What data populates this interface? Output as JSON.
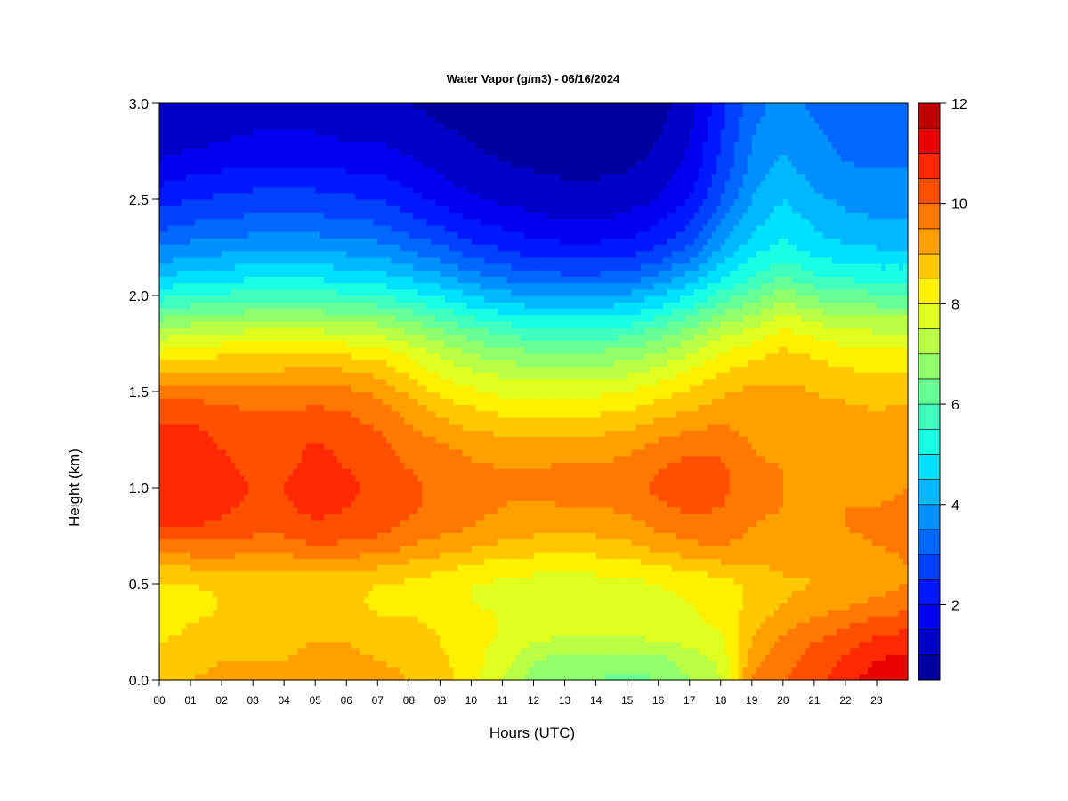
{
  "chart_data": {
    "type": "heatmap",
    "title": "Water Vapor (g/m3) - 06/16/2024",
    "xlabel": "Hours (UTC)",
    "ylabel": "Height (km)",
    "x_ticks": [
      "00",
      "01",
      "02",
      "03",
      "04",
      "05",
      "06",
      "07",
      "08",
      "09",
      "10",
      "11",
      "12",
      "13",
      "14",
      "15",
      "16",
      "17",
      "18",
      "19",
      "20",
      "21",
      "22",
      "23"
    ],
    "x_range": [
      0,
      24
    ],
    "y_ticks": [
      "0.0",
      "0.5",
      "1.0",
      "1.5",
      "2.0",
      "2.5",
      "3.0"
    ],
    "y_range": [
      0,
      3
    ],
    "colorbar": {
      "range": [
        0.5,
        12
      ],
      "ticks": [
        "2",
        "4",
        "6",
        "8",
        "10",
        "12"
      ],
      "levels": [
        0.5,
        1.0,
        1.5,
        2.0,
        2.5,
        3.0,
        3.5,
        4.0,
        4.5,
        5.0,
        5.5,
        6.0,
        6.5,
        7.0,
        7.5,
        8.0,
        8.5,
        9.0,
        9.5,
        10.0,
        10.5,
        11.0,
        11.5,
        12.0
      ],
      "colors": [
        "#00007f",
        "#0000a0",
        "#0000c8",
        "#0000f0",
        "#0018ff",
        "#0040ff",
        "#0068ff",
        "#0090ff",
        "#00b8ff",
        "#00e0ff",
        "#18ffe6",
        "#40ffbe",
        "#68ff96",
        "#90ff6e",
        "#b8ff46",
        "#e0ff1e",
        "#fff000",
        "#ffc800",
        "#ffa000",
        "#ff7800",
        "#ff5000",
        "#ff2800",
        "#e60000",
        "#be0000",
        "#960000"
      ]
    },
    "hours": [
      0,
      1,
      2,
      3,
      4,
      5,
      6,
      7,
      8,
      9,
      10,
      11,
      12,
      13,
      14,
      15,
      16,
      17,
      18,
      19,
      20,
      21,
      22,
      23,
      24
    ],
    "heights_km": [
      0.0,
      0.1,
      0.2,
      0.3,
      0.4,
      0.5,
      0.6,
      0.7,
      0.8,
      0.9,
      1.0,
      1.1,
      1.2,
      1.3,
      1.4,
      1.5,
      1.6,
      1.7,
      1.8,
      1.9,
      2.0,
      2.1,
      2.2,
      2.3,
      2.4,
      2.5,
      2.6,
      2.7,
      2.8,
      2.9,
      3.0
    ],
    "values_by_height": [
      [
        8.8,
        9.0,
        9.2,
        9.2,
        9.2,
        9.5,
        9.3,
        9.2,
        9.0,
        8.7,
        8.3,
        7.4,
        6.8,
        6.5,
        6.5,
        6.3,
        6.5,
        7.0,
        7.5,
        9.5,
        10.0,
        10.3,
        10.8,
        11.3,
        11.5
      ],
      [
        8.6,
        8.8,
        9.0,
        9.0,
        9.0,
        9.3,
        9.2,
        9.0,
        8.9,
        8.6,
        8.2,
        7.7,
        7.0,
        6.8,
        6.8,
        6.7,
        6.8,
        7.2,
        7.6,
        9.3,
        9.8,
        10.2,
        10.6,
        11.0,
        11.2
      ],
      [
        8.5,
        8.6,
        8.8,
        8.8,
        8.8,
        9.0,
        9.0,
        8.8,
        8.8,
        8.5,
        8.2,
        7.9,
        7.5,
        7.4,
        7.4,
        7.3,
        7.5,
        7.6,
        7.8,
        9.0,
        9.6,
        10.0,
        10.3,
        10.6,
        10.8
      ],
      [
        8.3,
        8.5,
        8.6,
        8.7,
        8.6,
        8.8,
        8.8,
        8.6,
        8.6,
        8.4,
        8.2,
        8.0,
        7.8,
        7.8,
        7.8,
        7.8,
        7.9,
        7.9,
        8.1,
        8.8,
        9.3,
        9.6,
        9.9,
        10.2,
        10.3
      ],
      [
        8.2,
        8.3,
        8.5,
        8.5,
        8.5,
        8.6,
        8.6,
        8.4,
        8.4,
        8.2,
        8.0,
        7.9,
        7.8,
        7.8,
        7.8,
        7.8,
        7.9,
        8.0,
        8.2,
        8.6,
        9.0,
        9.2,
        9.4,
        9.6,
        9.8
      ],
      [
        8.4,
        8.5,
        8.6,
        8.6,
        8.6,
        8.7,
        8.6,
        8.5,
        8.4,
        8.2,
        8.0,
        7.9,
        7.8,
        7.8,
        7.8,
        7.8,
        8.0,
        8.1,
        8.3,
        8.6,
        8.9,
        9.0,
        9.1,
        9.3,
        9.5
      ],
      [
        9.0,
        9.1,
        9.2,
        9.1,
        9.1,
        9.3,
        9.2,
        9.1,
        8.9,
        8.7,
        8.5,
        8.3,
        8.2,
        8.2,
        8.2,
        8.3,
        8.5,
        8.7,
        8.9,
        9.0,
        9.1,
        9.1,
        9.2,
        9.3,
        9.5
      ],
      [
        9.8,
        9.9,
        9.9,
        9.8,
        9.8,
        10.0,
        9.9,
        9.8,
        9.5,
        9.3,
        9.1,
        8.9,
        8.8,
        8.8,
        8.8,
        8.9,
        9.2,
        9.4,
        9.5,
        9.3,
        9.3,
        9.3,
        9.4,
        9.5,
        9.6
      ],
      [
        10.5,
        10.5,
        10.4,
        10.2,
        10.2,
        10.4,
        10.3,
        10.2,
        9.9,
        9.7,
        9.5,
        9.3,
        9.2,
        9.2,
        9.2,
        9.3,
        9.6,
        9.8,
        9.9,
        9.5,
        9.4,
        9.4,
        9.5,
        9.6,
        9.7
      ],
      [
        10.8,
        10.8,
        10.6,
        10.4,
        10.4,
        10.7,
        10.5,
        10.4,
        10.1,
        9.9,
        9.7,
        9.5,
        9.4,
        9.5,
        9.5,
        9.6,
        9.9,
        10.1,
        10.0,
        9.6,
        9.5,
        9.4,
        9.5,
        9.5,
        9.6
      ],
      [
        10.9,
        10.9,
        10.7,
        10.5,
        10.5,
        10.8,
        10.6,
        10.4,
        10.1,
        9.9,
        9.7,
        9.6,
        9.6,
        9.7,
        9.7,
        9.8,
        10.1,
        10.3,
        10.2,
        9.6,
        9.5,
        9.4,
        9.4,
        9.4,
        9.5
      ],
      [
        10.8,
        10.8,
        10.6,
        10.4,
        10.4,
        10.7,
        10.5,
        10.3,
        10.0,
        9.8,
        9.6,
        9.5,
        9.5,
        9.6,
        9.6,
        9.7,
        10.0,
        10.2,
        10.1,
        9.6,
        9.5,
        9.4,
        9.3,
        9.3,
        9.4
      ],
      [
        10.7,
        10.7,
        10.5,
        10.3,
        10.3,
        10.6,
        10.4,
        10.2,
        9.8,
        9.6,
        9.4,
        9.3,
        9.2,
        9.3,
        9.3,
        9.4,
        9.7,
        9.9,
        9.9,
        9.5,
        9.4,
        9.3,
        9.2,
        9.2,
        9.3
      ],
      [
        10.6,
        10.6,
        10.4,
        10.2,
        10.2,
        10.4,
        10.2,
        10.0,
        9.6,
        9.3,
        9.0,
        8.9,
        8.8,
        8.9,
        8.9,
        9.0,
        9.3,
        9.5,
        9.6,
        9.4,
        9.3,
        9.2,
        9.2,
        9.1,
        9.2
      ],
      [
        10.3,
        10.3,
        10.2,
        10.0,
        10.0,
        10.1,
        10.0,
        9.8,
        9.3,
        8.9,
        8.6,
        8.4,
        8.3,
        8.4,
        8.4,
        8.5,
        8.8,
        9.0,
        9.3,
        9.3,
        9.2,
        9.1,
        9.1,
        9.0,
        9.1
      ],
      [
        9.8,
        9.8,
        9.7,
        9.6,
        9.6,
        9.7,
        9.6,
        9.4,
        8.9,
        8.4,
        8.1,
        7.9,
        7.8,
        7.9,
        7.9,
        8.0,
        8.3,
        8.6,
        8.9,
        9.1,
        9.1,
        9.0,
        8.9,
        8.8,
        8.9
      ],
      [
        9.0,
        9.1,
        9.1,
        9.0,
        9.1,
        9.2,
        9.1,
        8.9,
        8.4,
        7.9,
        7.6,
        7.4,
        7.3,
        7.3,
        7.3,
        7.4,
        7.7,
        8.1,
        8.5,
        8.8,
        8.9,
        8.8,
        8.6,
        8.5,
        8.5
      ],
      [
        8.1,
        8.3,
        8.4,
        8.4,
        8.5,
        8.5,
        8.4,
        8.3,
        7.9,
        7.4,
        7.0,
        6.7,
        6.6,
        6.6,
        6.6,
        6.7,
        7.0,
        7.5,
        8.0,
        8.3,
        8.6,
        8.4,
        8.2,
        8.1,
        8.1
      ],
      [
        7.3,
        7.5,
        7.6,
        7.7,
        7.7,
        7.7,
        7.6,
        7.5,
        7.1,
        6.7,
        6.3,
        6.0,
        5.8,
        5.8,
        5.8,
        5.9,
        6.3,
        6.8,
        7.4,
        7.7,
        8.2,
        7.9,
        7.7,
        7.6,
        7.6
      ],
      [
        6.3,
        6.5,
        6.6,
        6.7,
        6.7,
        6.7,
        6.6,
        6.5,
        6.2,
        5.8,
        5.4,
        5.1,
        4.9,
        4.9,
        4.9,
        5.0,
        5.4,
        5.9,
        6.6,
        7.0,
        7.6,
        7.2,
        7.0,
        6.9,
        6.9
      ],
      [
        5.3,
        5.5,
        5.6,
        5.7,
        5.7,
        5.7,
        5.6,
        5.5,
        5.2,
        4.9,
        4.5,
        4.2,
        4.0,
        4.0,
        4.0,
        4.1,
        4.5,
        5.0,
        5.7,
        6.2,
        6.8,
        6.4,
        6.2,
        6.1,
        6.1
      ],
      [
        4.5,
        4.7,
        4.8,
        4.9,
        4.9,
        4.9,
        4.8,
        4.7,
        4.4,
        4.1,
        3.7,
        3.4,
        3.2,
        3.1,
        3.1,
        3.2,
        3.6,
        4.2,
        4.9,
        5.5,
        6.0,
        5.6,
        5.4,
        5.3,
        5.3
      ],
      [
        3.8,
        4.0,
        4.1,
        4.2,
        4.2,
        4.2,
        4.1,
        4.0,
        3.7,
        3.4,
        3.0,
        2.7,
        2.5,
        2.4,
        2.4,
        2.5,
        2.8,
        3.4,
        4.3,
        5.0,
        5.4,
        5.0,
        4.8,
        4.7,
        4.7
      ],
      [
        3.2,
        3.4,
        3.5,
        3.6,
        3.6,
        3.6,
        3.5,
        3.4,
        3.1,
        2.8,
        2.4,
        2.2,
        2.0,
        1.9,
        1.9,
        2.0,
        2.3,
        2.8,
        3.8,
        4.6,
        5.0,
        4.6,
        4.4,
        4.3,
        4.3
      ],
      [
        2.7,
        2.9,
        3.0,
        3.1,
        3.1,
        3.1,
        3.0,
        2.9,
        2.6,
        2.3,
        2.0,
        1.8,
        1.6,
        1.5,
        1.5,
        1.6,
        1.9,
        2.4,
        3.4,
        4.3,
        4.7,
        4.4,
        4.1,
        4.0,
        4.0
      ],
      [
        2.3,
        2.5,
        2.6,
        2.7,
        2.7,
        2.7,
        2.6,
        2.5,
        2.2,
        1.9,
        1.6,
        1.4,
        1.3,
        1.2,
        1.2,
        1.3,
        1.5,
        2.0,
        3.0,
        4.0,
        4.5,
        4.1,
        3.9,
        3.8,
        3.8
      ],
      [
        1.9,
        2.1,
        2.2,
        2.3,
        2.3,
        2.3,
        2.2,
        2.1,
        1.9,
        1.6,
        1.3,
        1.2,
        1.1,
        1.0,
        1.0,
        1.1,
        1.3,
        1.8,
        2.8,
        3.8,
        4.3,
        3.9,
        3.7,
        3.6,
        3.6
      ],
      [
        1.5,
        1.7,
        1.8,
        1.9,
        1.9,
        1.9,
        1.8,
        1.8,
        1.6,
        1.3,
        1.1,
        1.0,
        0.9,
        0.9,
        0.9,
        0.9,
        1.1,
        1.6,
        2.6,
        3.6,
        4.1,
        3.7,
        3.5,
        3.4,
        3.4
      ],
      [
        1.3,
        1.4,
        1.5,
        1.6,
        1.6,
        1.6,
        1.5,
        1.5,
        1.3,
        1.1,
        1.0,
        0.9,
        0.8,
        0.8,
        0.8,
        0.8,
        1.0,
        1.5,
        2.5,
        3.5,
        3.9,
        3.6,
        3.4,
        3.3,
        3.3
      ],
      [
        1.1,
        1.2,
        1.3,
        1.4,
        1.4,
        1.4,
        1.3,
        1.3,
        1.1,
        1.0,
        0.9,
        0.8,
        0.7,
        0.7,
        0.7,
        0.7,
        0.9,
        1.4,
        2.4,
        3.4,
        3.8,
        3.5,
        3.3,
        3.2,
        3.2
      ],
      [
        1.0,
        1.1,
        1.2,
        1.2,
        1.2,
        1.2,
        1.2,
        1.2,
        1.0,
        0.9,
        0.8,
        0.7,
        0.7,
        0.6,
        0.6,
        0.7,
        0.8,
        1.3,
        2.3,
        3.3,
        3.7,
        3.4,
        3.2,
        3.1,
        3.1
      ]
    ]
  }
}
